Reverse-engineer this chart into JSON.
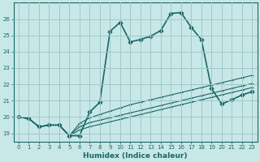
{
  "xlabel": "Humidex (Indice chaleur)",
  "bg_color": "#c8e8e8",
  "grid_color": "#a0c8c8",
  "line_color": "#1a6666",
  "xlim": [
    -0.5,
    23.5
  ],
  "ylim": [
    18.5,
    27.0
  ],
  "yticks": [
    19,
    20,
    21,
    22,
    23,
    24,
    25,
    26
  ],
  "xticks": [
    0,
    1,
    2,
    3,
    4,
    5,
    6,
    7,
    8,
    9,
    10,
    11,
    12,
    13,
    14,
    15,
    16,
    17,
    18,
    19,
    20,
    21,
    22,
    23
  ],
  "series": [
    {
      "x": [
        0,
        1,
        2,
        3,
        4,
        5,
        6,
        7,
        8,
        9,
        10,
        11,
        12,
        13,
        14,
        15,
        16,
        17,
        18,
        19,
        20,
        21,
        22,
        23
      ],
      "y": [
        20.0,
        19.9,
        19.4,
        19.5,
        19.5,
        18.85,
        18.85,
        20.3,
        20.9,
        25.25,
        25.8,
        24.6,
        24.75,
        24.95,
        25.3,
        26.35,
        26.4,
        25.5,
        24.75,
        21.75,
        20.8,
        21.05,
        21.35,
        21.55
      ],
      "marker": "D",
      "markersize": 2.5,
      "linewidth": 1.2,
      "linestyle": "-"
    },
    {
      "x": [
        0,
        1,
        2,
        3,
        4,
        5,
        6,
        7,
        8,
        9,
        10,
        11,
        12,
        13,
        14,
        15,
        16,
        17,
        18,
        19,
        20,
        21,
        22,
        23
      ],
      "y": [
        20.0,
        19.9,
        19.4,
        19.5,
        19.5,
        18.85,
        19.6,
        19.95,
        20.15,
        20.35,
        20.55,
        20.75,
        20.9,
        21.05,
        21.2,
        21.35,
        21.5,
        21.65,
        21.8,
        21.95,
        22.1,
        22.25,
        22.4,
        22.55
      ],
      "marker": "+",
      "markersize": 3,
      "linewidth": 0.8,
      "linestyle": "-"
    },
    {
      "x": [
        0,
        1,
        2,
        3,
        4,
        5,
        6,
        7,
        8,
        9,
        10,
        11,
        12,
        13,
        14,
        15,
        16,
        17,
        18,
        19,
        20,
        21,
        22,
        23
      ],
      "y": [
        20.0,
        19.9,
        19.4,
        19.5,
        19.5,
        18.85,
        19.4,
        19.65,
        19.8,
        19.95,
        20.1,
        20.25,
        20.4,
        20.55,
        20.7,
        20.85,
        21.0,
        21.15,
        21.3,
        21.45,
        21.6,
        21.75,
        21.9,
        22.05
      ],
      "marker": "+",
      "markersize": 3,
      "linewidth": 0.8,
      "linestyle": "-"
    },
    {
      "x": [
        0,
        1,
        2,
        3,
        4,
        5,
        6,
        7,
        8,
        9,
        10,
        11,
        12,
        13,
        14,
        15,
        16,
        17,
        18,
        19,
        20,
        21,
        22,
        23
      ],
      "y": [
        20.0,
        19.9,
        19.4,
        19.5,
        19.5,
        18.85,
        19.2,
        19.4,
        19.55,
        19.7,
        19.85,
        20.0,
        20.15,
        20.3,
        20.45,
        20.6,
        20.75,
        20.9,
        21.05,
        21.2,
        21.35,
        21.5,
        21.65,
        21.8
      ],
      "marker": "+",
      "markersize": 3,
      "linewidth": 0.8,
      "linestyle": "-"
    }
  ]
}
